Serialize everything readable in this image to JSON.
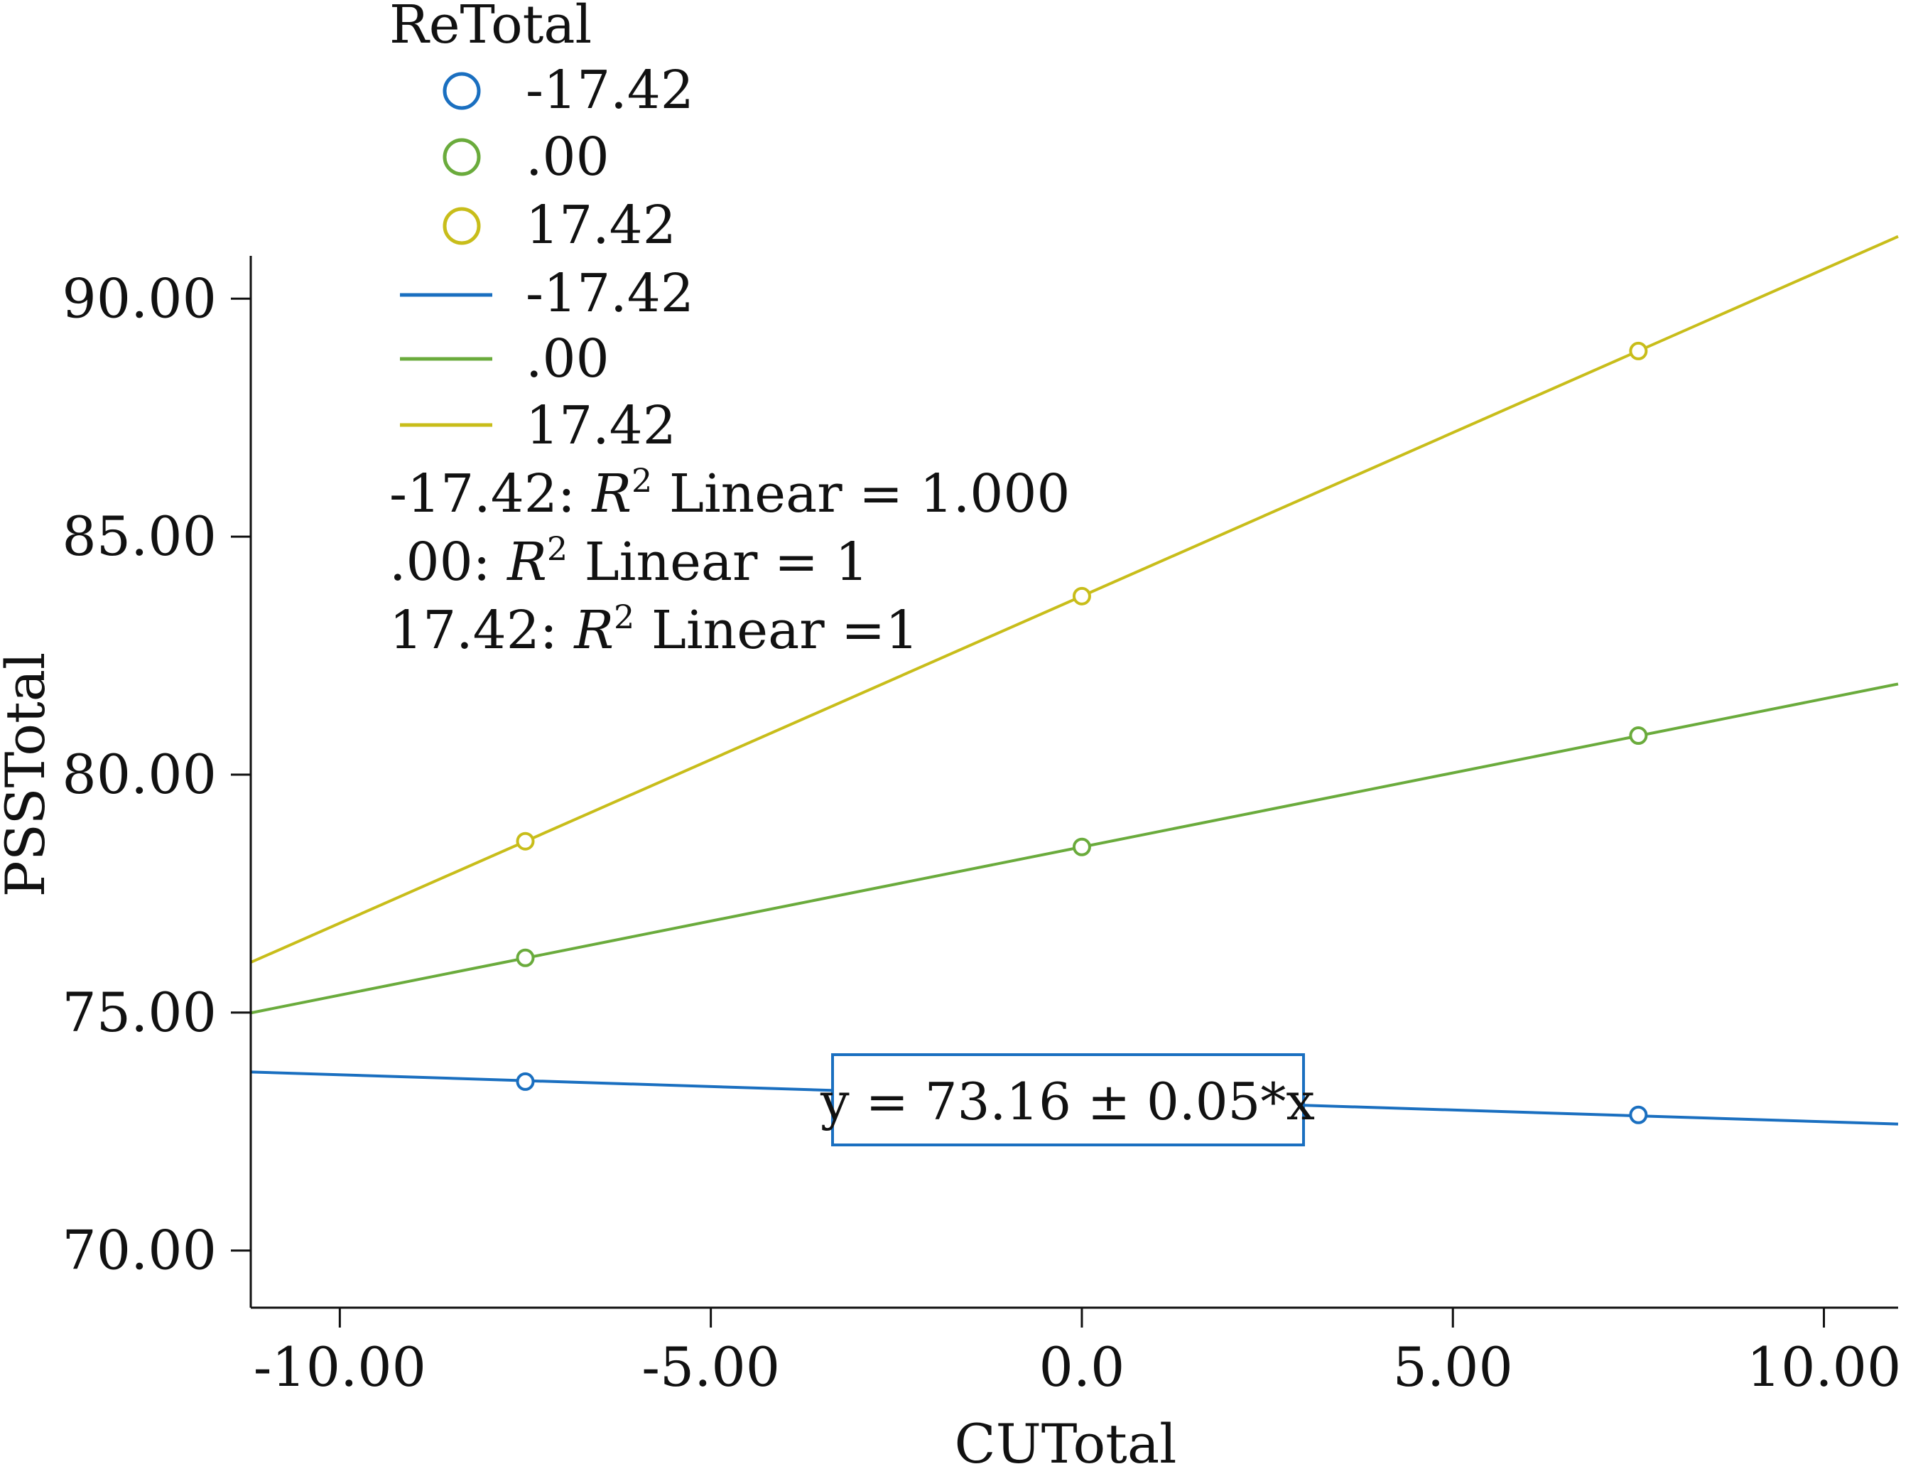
{
  "chart_data": {
    "type": "scatter",
    "xlabel": "CUTotal",
    "ylabel": "PSSTotal",
    "xlim": [
      -11.2,
      11.0
    ],
    "ylim": [
      68.8,
      90.9
    ],
    "xticks": [
      -10.0,
      -5.0,
      0.0,
      5.0,
      10.0
    ],
    "xtick_labels": [
      "-10.00",
      "-5.00",
      "0.0",
      "5.00",
      "10.00"
    ],
    "yticks": [
      70.0,
      75.0,
      80.0,
      85.0,
      90.0
    ],
    "ytick_labels": [
      "70.00",
      "75.00",
      "80.00",
      "85.00",
      "90.00"
    ],
    "legend": {
      "title": "ReTotal",
      "marker_entries": [
        "-17.42",
        ".00",
        "17.42"
      ],
      "line_entries": [
        "-17.42",
        ".00",
        "17.42"
      ]
    },
    "series": [
      {
        "name": "-17.42",
        "color": "#1a6fc0",
        "points": [
          [
            -7.5,
            73.55
          ],
          [
            7.5,
            72.85
          ]
        ],
        "fit": {
          "intercept": 73.2,
          "slope": -0.0493
        },
        "rsq_prefix": "-17.42: ",
        "rsq_label": "R",
        "rsq_sup": "2",
        "rsq_suffix": " Linear = 1.000"
      },
      {
        "name": ".00",
        "color": "#6aab3c",
        "points": [
          [
            -7.5,
            76.15
          ],
          [
            0.0,
            78.48
          ],
          [
            7.5,
            80.82
          ]
        ],
        "fit": {
          "intercept": 78.48,
          "slope": 0.3113
        },
        "rsq_prefix": ".00: ",
        "rsq_label": "R",
        "rsq_sup": "2",
        "rsq_suffix": " Linear = 1"
      },
      {
        "name": "17.42",
        "color": "#c8bd1a",
        "points": [
          [
            -7.5,
            78.6
          ],
          [
            0.0,
            83.75
          ],
          [
            7.5,
            88.9
          ]
        ],
        "fit": {
          "intercept": 83.75,
          "slope": 0.687
        },
        "rsq_prefix": "17.42: ",
        "rsq_label": "R",
        "rsq_sup": "2",
        "rsq_suffix": " Linear =1"
      }
    ],
    "annotation": {
      "text": "y = 73.16 ± 0.05*x",
      "border_color": "#1a6fc0"
    }
  }
}
